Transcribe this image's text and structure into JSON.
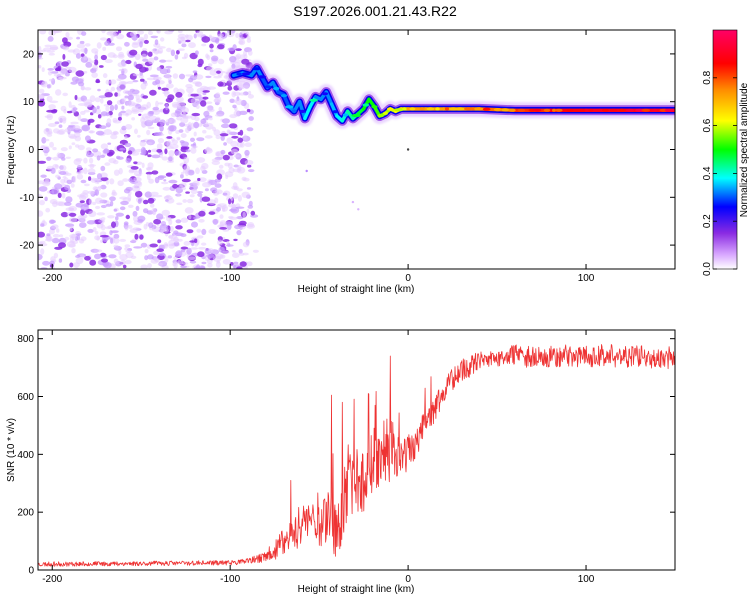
{
  "title": "S197.2026.001.21.43.R22",
  "chart_data": [
    {
      "type": "heatmap",
      "name": "spectrogram",
      "xlabel": "Height of straight line (km)",
      "ylabel": "Frequency (Hz)",
      "xlim": [
        -208,
        150
      ],
      "ylim": [
        -25,
        25
      ],
      "xticks": [
        -200,
        -100,
        0,
        100
      ],
      "yticks": [
        -20,
        -10,
        0,
        10,
        20
      ],
      "noise_region_x": [
        -208,
        -88
      ],
      "ridge": {
        "x": [
          -98,
          -93,
          -88,
          -85,
          -82,
          -79,
          -76,
          -73,
          -70,
          -67,
          -64,
          -61,
          -58,
          -55,
          -52,
          -49,
          -46,
          -43,
          -40,
          -37,
          -34,
          -31,
          -28,
          -25,
          -22,
          -19,
          -16,
          -13,
          -10,
          -7,
          -4,
          0,
          10,
          20,
          40,
          60,
          80,
          100,
          120,
          150
        ],
        "y": [
          15.5,
          16,
          15.5,
          17,
          15,
          13,
          14,
          12,
          11.5,
          9,
          8,
          10,
          6.5,
          9,
          11,
          10.5,
          12,
          9.5,
          7,
          6,
          8,
          6.5,
          7.5,
          8.5,
          10.5,
          9,
          7,
          7.5,
          8.5,
          8,
          8.5,
          8.5,
          8.5,
          8.5,
          8.5,
          8.2,
          8.2,
          8.2,
          8.2,
          8.2
        ],
        "amplitude": [
          0.3,
          0.35,
          0.3,
          0.35,
          0.3,
          0.3,
          0.35,
          0.3,
          0.3,
          0.3,
          0.35,
          0.3,
          0.35,
          0.4,
          0.35,
          0.3,
          0.35,
          0.3,
          0.4,
          0.35,
          0.45,
          0.4,
          0.45,
          0.5,
          0.5,
          0.5,
          0.55,
          0.55,
          0.6,
          0.6,
          0.65,
          0.7,
          0.75,
          0.7,
          0.75,
          0.8,
          0.85,
          0.9,
          0.9,
          0.9
        ]
      },
      "colorbar": {
        "label": "Normalized spectral amplitude",
        "range": [
          0.0,
          1.0
        ],
        "ticks": [
          "0.0",
          "0.2",
          "0.4",
          "0.6",
          "0.8"
        ]
      }
    },
    {
      "type": "line",
      "name": "snr",
      "xlabel": "Height of straight line (km)",
      "ylabel": "SNR (10 * v/v)",
      "xlim": [
        -208,
        150
      ],
      "ylim": [
        0,
        830
      ],
      "xticks": [
        -200,
        -100,
        0,
        100
      ],
      "yticks": [
        0,
        200,
        400,
        600,
        800
      ],
      "color": "#ee3333",
      "envelope": {
        "x": [
          -208,
          -100,
          -90,
          -80,
          -70,
          -60,
          -55,
          -50,
          -45,
          -40,
          -35,
          -30,
          -25,
          -20,
          -15,
          -10,
          -5,
          0,
          5,
          10,
          15,
          20,
          25,
          30,
          40,
          50,
          60,
          80,
          100,
          120,
          150
        ],
        "y": [
          20,
          25,
          30,
          45,
          95,
          150,
          190,
          150,
          210,
          120,
          250,
          320,
          320,
          380,
          400,
          420,
          400,
          410,
          440,
          500,
          560,
          620,
          660,
          690,
          720,
          730,
          740,
          740,
          740,
          740,
          735
        ],
        "spread": [
          8,
          8,
          10,
          20,
          50,
          80,
          80,
          70,
          120,
          90,
          130,
          120,
          120,
          110,
          110,
          120,
          80,
          70,
          60,
          60,
          50,
          40,
          40,
          40,
          35,
          35,
          40,
          40,
          40,
          40,
          40
        ]
      },
      "annotated_peaks": [
        {
          "x": -66,
          "y": 310
        },
        {
          "x": -43,
          "y": 605
        },
        {
          "x": -37,
          "y": 580
        },
        {
          "x": -10,
          "y": 740
        }
      ]
    }
  ]
}
